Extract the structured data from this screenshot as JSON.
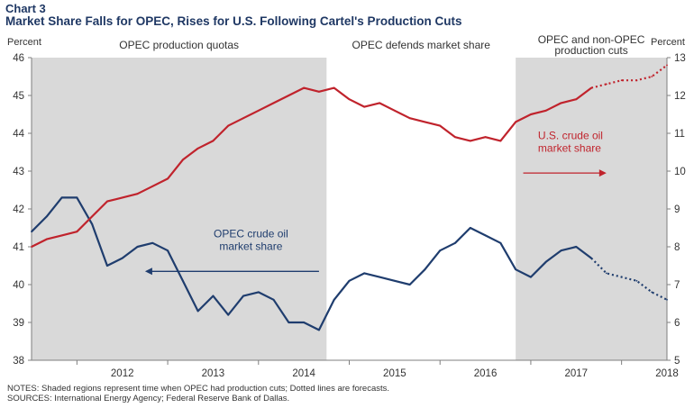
{
  "chart_number": "Chart 3",
  "chart_title": "Market Share Falls for OPEC, Rises for U.S. Following Cartel's Production Cuts",
  "left_unit": "Percent",
  "right_unit": "Percent",
  "notes": "NOTES: Shaded regions represent time when OPEC had production cuts; Dotted lines are forecasts.",
  "sources": "SOURCES: International Energy Agency; Federal Reserve Bank of Dallas.",
  "colors": {
    "us": "#c0232c",
    "opec": "#1f3d6e",
    "shade": "#d9d9d9",
    "axis": "#7f7f7f"
  },
  "chart_data": {
    "type": "line",
    "x_range": [
      "2011-07",
      "2018-07"
    ],
    "x_tick_labels": [
      "2012",
      "2013",
      "2014",
      "2015",
      "2016",
      "2017",
      "2018"
    ],
    "y_left_range": [
      38,
      46
    ],
    "y_left_ticks": [
      "38",
      "39",
      "40",
      "41",
      "42",
      "43",
      "44",
      "45",
      "46"
    ],
    "y_right_range": [
      5,
      13
    ],
    "y_right_ticks": [
      "5",
      "6",
      "7",
      "8",
      "9",
      "10",
      "11",
      "12",
      "13"
    ],
    "shaded_regions": [
      {
        "label": "OPEC production quotas",
        "start": "2011-07",
        "end": "2014-10"
      },
      {
        "label": "OPEC and non-OPEC production cuts",
        "start": "2016-11",
        "end": "2018-07"
      }
    ],
    "unshaded_region_labels": [
      {
        "label": "OPEC defends market share",
        "start": "2014-10",
        "end": "2016-11"
      }
    ],
    "series": [
      {
        "name": "OPEC crude oil market share",
        "axis": "left",
        "x": [
          "2011-07",
          "2011-09",
          "2011-11",
          "2012-01",
          "2012-03",
          "2012-05",
          "2012-07",
          "2012-09",
          "2012-11",
          "2013-01",
          "2013-03",
          "2013-05",
          "2013-07",
          "2013-09",
          "2013-11",
          "2014-01",
          "2014-03",
          "2014-05",
          "2014-07",
          "2014-09",
          "2014-11",
          "2015-01",
          "2015-03",
          "2015-05",
          "2015-07",
          "2015-09",
          "2015-11",
          "2016-01",
          "2016-03",
          "2016-05",
          "2016-07",
          "2016-09",
          "2016-11",
          "2017-01",
          "2017-03",
          "2017-05",
          "2017-07",
          "2017-09",
          "2017-11",
          "2018-01",
          "2018-03",
          "2018-05",
          "2018-07"
        ],
        "values": [
          41.4,
          41.8,
          42.3,
          42.3,
          41.6,
          40.5,
          40.7,
          41.0,
          41.1,
          40.9,
          40.1,
          39.3,
          39.7,
          39.2,
          39.7,
          39.8,
          39.6,
          39.0,
          39.0,
          38.8,
          39.6,
          40.1,
          40.3,
          40.2,
          40.1,
          40.0,
          40.4,
          40.9,
          41.1,
          41.5,
          41.3,
          41.1,
          40.4,
          40.2,
          40.6,
          40.9,
          41.0,
          40.7,
          40.3,
          40.2,
          40.1,
          39.8,
          39.6
        ],
        "forecast_from": "2017-09"
      },
      {
        "name": "U.S. crude oil market share",
        "axis": "right",
        "x": [
          "2011-07",
          "2011-09",
          "2011-11",
          "2012-01",
          "2012-03",
          "2012-05",
          "2012-07",
          "2012-09",
          "2012-11",
          "2013-01",
          "2013-03",
          "2013-05",
          "2013-07",
          "2013-09",
          "2013-11",
          "2014-01",
          "2014-03",
          "2014-05",
          "2014-07",
          "2014-09",
          "2014-11",
          "2015-01",
          "2015-03",
          "2015-05",
          "2015-07",
          "2015-09",
          "2015-11",
          "2016-01",
          "2016-03",
          "2016-05",
          "2016-07",
          "2016-09",
          "2016-11",
          "2017-01",
          "2017-03",
          "2017-05",
          "2017-07",
          "2017-09",
          "2017-11",
          "2018-01",
          "2018-03",
          "2018-05",
          "2018-07"
        ],
        "values": [
          8.0,
          8.2,
          8.3,
          8.4,
          8.8,
          9.2,
          9.3,
          9.4,
          9.6,
          9.8,
          10.3,
          10.6,
          10.8,
          11.2,
          11.4,
          11.6,
          11.8,
          12.0,
          12.2,
          12.1,
          12.2,
          11.9,
          11.7,
          11.8,
          11.6,
          11.4,
          11.3,
          11.2,
          10.9,
          10.8,
          10.9,
          10.8,
          11.3,
          11.5,
          11.6,
          11.8,
          11.9,
          12.2,
          12.3,
          12.4,
          12.4,
          12.5,
          12.8
        ],
        "forecast_from": "2017-09"
      }
    ],
    "annotations": [
      {
        "text_lines": [
          "OPEC crude oil",
          "market share"
        ],
        "series": "OPEC crude oil market share",
        "arrow": "left"
      },
      {
        "text_lines": [
          "U.S. crude oil",
          "market share"
        ],
        "series": "U.S. crude oil market share",
        "arrow": "right"
      }
    ],
    "grid": false,
    "legend": "none"
  }
}
